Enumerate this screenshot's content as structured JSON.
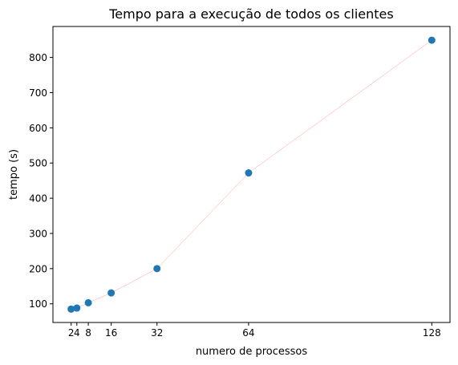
{
  "chart_data": {
    "type": "scatter",
    "title": "Tempo para a execução de todos os clientes",
    "xlabel": "numero de processos",
    "ylabel": "tempo (s)",
    "xlim": [
      -4.35,
      134.35
    ],
    "ylim": [
      47,
      888
    ],
    "x_ticks": [
      2,
      4,
      8,
      16,
      32,
      64,
      128
    ],
    "x_tick_labels": [
      "2",
      "4",
      "8",
      "16",
      "32",
      "64",
      "128"
    ],
    "y_ticks": [
      100,
      200,
      300,
      400,
      500,
      600,
      700,
      800
    ],
    "y_tick_labels": [
      "100",
      "200",
      "300",
      "400",
      "500",
      "600",
      "700",
      "800"
    ],
    "grid": false,
    "series": [
      {
        "x": [
          2,
          4,
          8,
          16,
          32,
          64,
          128
        ],
        "y": [
          85,
          88,
          103,
          131,
          200,
          472,
          849
        ],
        "marker_color": "#1f77b4",
        "line_color": "#ff9999"
      }
    ]
  }
}
